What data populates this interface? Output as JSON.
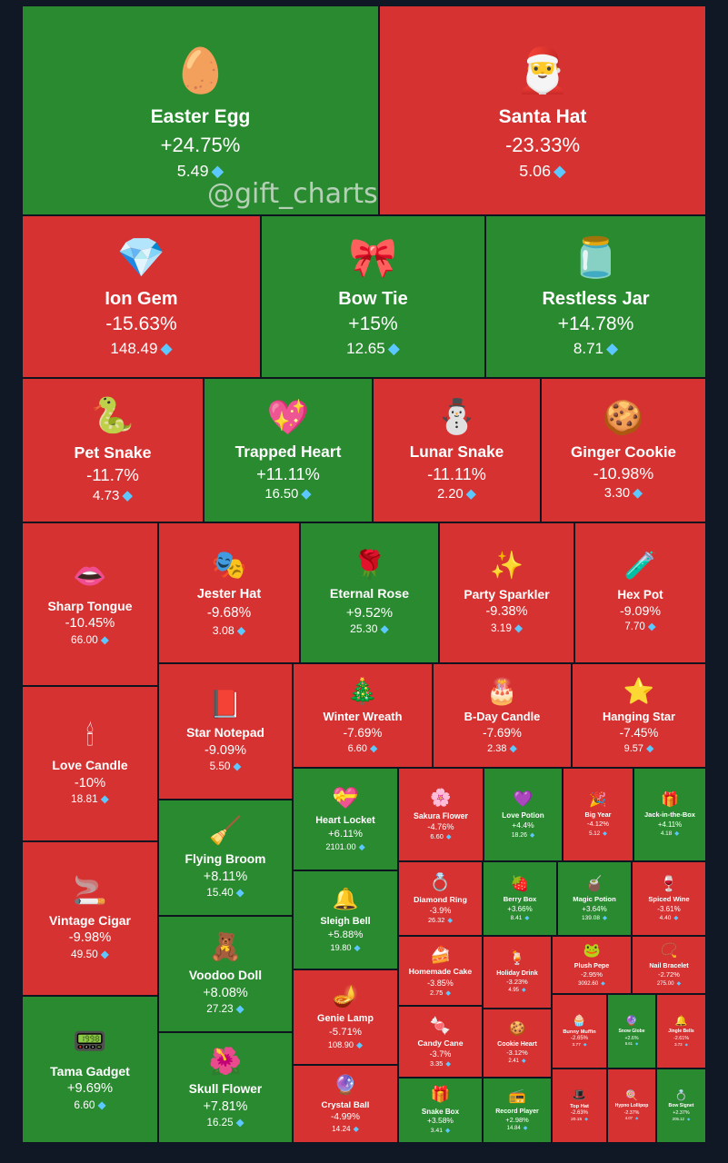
{
  "watermark": "@gift_charts",
  "colors": {
    "up": "#2a8a30",
    "down": "#d63232",
    "border": "#0e1520",
    "background": "#0f1824",
    "diamond": "#5cc8ff"
  },
  "currency_icon": "diamond-icon",
  "chart_data": {
    "type": "treemap",
    "items": [
      {
        "name": "Easter Egg",
        "change": "+24.75%",
        "price": "5.49",
        "icon": "🥚"
      },
      {
        "name": "Santa Hat",
        "change": "-23.33%",
        "price": "5.06",
        "icon": "🎅"
      },
      {
        "name": "Ion Gem",
        "change": "-15.63%",
        "price": "148.49",
        "icon": "💎"
      },
      {
        "name": "Bow Tie",
        "change": "+15%",
        "price": "12.65",
        "icon": "🎀"
      },
      {
        "name": "Restless Jar",
        "change": "+14.78%",
        "price": "8.71",
        "icon": "🫙"
      },
      {
        "name": "Pet Snake",
        "change": "-11.7%",
        "price": "4.73",
        "icon": "🐍"
      },
      {
        "name": "Trapped Heart",
        "change": "+11.11%",
        "price": "16.50",
        "icon": "💖"
      },
      {
        "name": "Lunar Snake",
        "change": "-11.11%",
        "price": "2.20",
        "icon": "⛄"
      },
      {
        "name": "Ginger Cookie",
        "change": "-10.98%",
        "price": "3.30",
        "icon": "🍪"
      },
      {
        "name": "Sharp Tongue",
        "change": "-10.45%",
        "price": "66.00",
        "icon": "👄"
      },
      {
        "name": "Jester Hat",
        "change": "-9.68%",
        "price": "3.08",
        "icon": "🎭"
      },
      {
        "name": "Eternal Rose",
        "change": "+9.52%",
        "price": "25.30",
        "icon": "🌹"
      },
      {
        "name": "Party Sparkler",
        "change": "-9.38%",
        "price": "3.19",
        "icon": "✨"
      },
      {
        "name": "Hex Pot",
        "change": "-9.09%",
        "price": "7.70",
        "icon": "🧪"
      },
      {
        "name": "Love Candle",
        "change": "-10%",
        "price": "18.81",
        "icon": "🕯"
      },
      {
        "name": "Star Notepad",
        "change": "-9.09%",
        "price": "5.50",
        "icon": "📕"
      },
      {
        "name": "Winter Wreath",
        "change": "-7.69%",
        "price": "6.60",
        "icon": "🎄"
      },
      {
        "name": "B-Day Candle",
        "change": "-7.69%",
        "price": "2.38",
        "icon": "🎂"
      },
      {
        "name": "Hanging Star",
        "change": "-7.45%",
        "price": "9.57",
        "icon": "⭐"
      },
      {
        "name": "Heart Locket",
        "change": "+6.11%",
        "price": "2101.00",
        "icon": "💝"
      },
      {
        "name": "Sakura Flower",
        "change": "-4.76%",
        "price": "6.60",
        "icon": "🌸"
      },
      {
        "name": "Love Potion",
        "change": "+4.4%",
        "price": "18.26",
        "icon": "💜"
      },
      {
        "name": "Big Year",
        "change": "-4.12%",
        "price": "5.12",
        "icon": "🎉"
      },
      {
        "name": "Jack-in-the-Box",
        "change": "+4.11%",
        "price": "4.18",
        "icon": "🎁"
      },
      {
        "name": "Vintage Cigar",
        "change": "-9.98%",
        "price": "49.50",
        "icon": "🚬"
      },
      {
        "name": "Flying Broom",
        "change": "+8.11%",
        "price": "15.40",
        "icon": "🧹"
      },
      {
        "name": "Diamond Ring",
        "change": "-3.9%",
        "price": "26.32",
        "icon": "💍"
      },
      {
        "name": "Berry Box",
        "change": "+3.66%",
        "price": "8.41",
        "icon": "🍓"
      },
      {
        "name": "Magic Potion",
        "change": "+3.64%",
        "price": "139.08",
        "icon": "🧉"
      },
      {
        "name": "Spiced Wine",
        "change": "-3.61%",
        "price": "4.40",
        "icon": "🍷"
      },
      {
        "name": "Sleigh Bell",
        "change": "+5.88%",
        "price": "19.80",
        "icon": "🔔"
      },
      {
        "name": "Homemade Cake",
        "change": "-3.85%",
        "price": "2.75",
        "icon": "🍰"
      },
      {
        "name": "Holiday Drink",
        "change": "-3.23%",
        "price": "4.95",
        "icon": "🍹"
      },
      {
        "name": "Plush Pepe",
        "change": "-2.95%",
        "price": "3092.60",
        "icon": "🐸"
      },
      {
        "name": "Nail Bracelet",
        "change": "-2.72%",
        "price": "275.00",
        "icon": "📿"
      },
      {
        "name": "Voodoo Doll",
        "change": "+8.08%",
        "price": "27.23",
        "icon": "🧸"
      },
      {
        "name": "Genie Lamp",
        "change": "-5.71%",
        "price": "108.90",
        "icon": "🪔"
      },
      {
        "name": "Candy Cane",
        "change": "-3.7%",
        "price": "3.35",
        "icon": "🍬"
      },
      {
        "name": "Cookie Heart",
        "change": "-3.12%",
        "price": "2.41",
        "icon": "🍪"
      },
      {
        "name": "Bunny Muffin",
        "change": "-2.65%",
        "price": "3.77",
        "icon": "🧁"
      },
      {
        "name": "Snow Globe",
        "change": "+2.6%",
        "price": "8.61",
        "icon": "🔮"
      },
      {
        "name": "Jingle Bells",
        "change": "-2.61%",
        "price": "3.73",
        "icon": "🔔"
      },
      {
        "name": "Tama Gadget",
        "change": "+9.69%",
        "price": "6.60",
        "icon": "📟"
      },
      {
        "name": "Skull Flower",
        "change": "+7.81%",
        "price": "16.25",
        "icon": "🌺"
      },
      {
        "name": "Crystal Ball",
        "change": "-4.99%",
        "price": "14.24",
        "icon": "🔮"
      },
      {
        "name": "Snake Box",
        "change": "+3.58%",
        "price": "3.41",
        "icon": "🎁"
      },
      {
        "name": "Record Player",
        "change": "+2.98%",
        "price": "14.84",
        "icon": "📻"
      },
      {
        "name": "Top Hat",
        "change": "-2.63%",
        "price": "20.15",
        "icon": "🎩"
      },
      {
        "name": "Hypno Lollipop",
        "change": "-2.37%",
        "price": "4.07",
        "icon": "🍭"
      },
      {
        "name": "Bow Signet",
        "change": "+2.37%",
        "price": "205.12",
        "icon": "💍"
      }
    ]
  }
}
